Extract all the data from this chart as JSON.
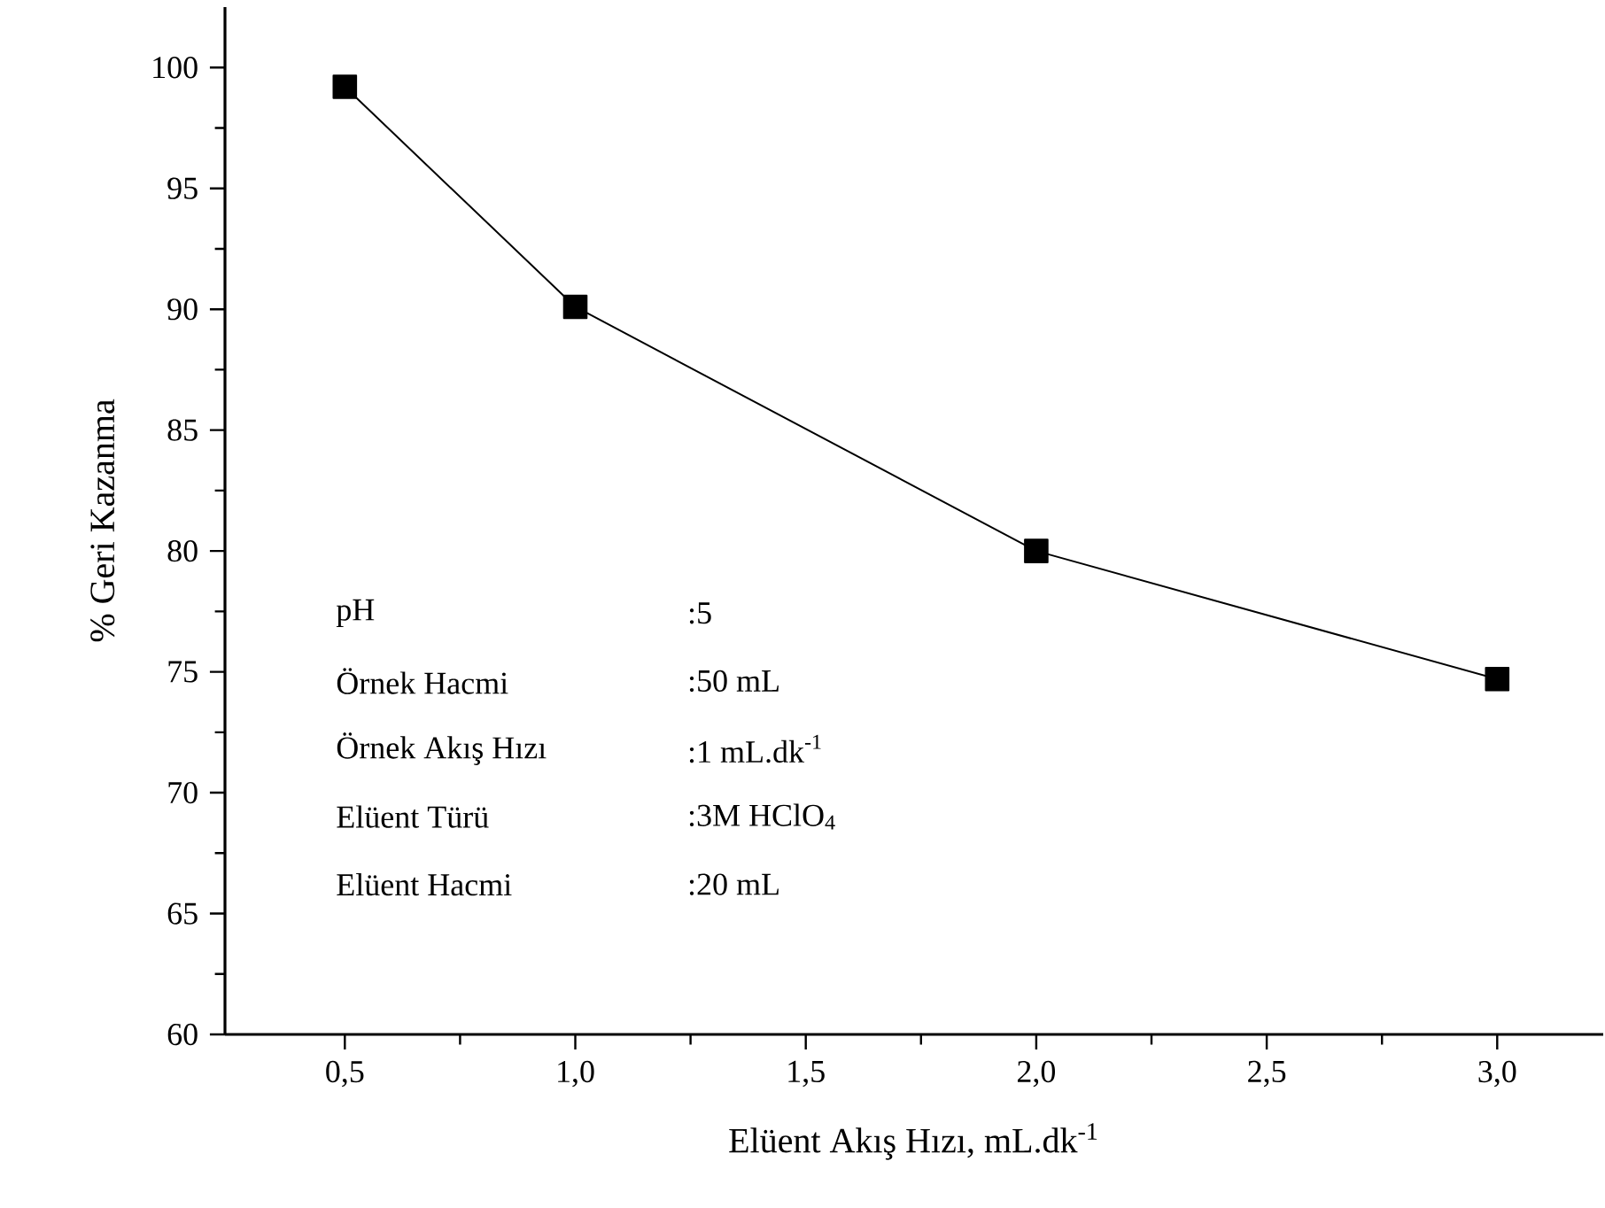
{
  "chart_data": {
    "type": "line",
    "xlabel": "Elüent Akış Hızı, mL.dk$^{-1}$",
    "ylabel": "% Geri Kazanma",
    "x": [
      0.5,
      1.0,
      2.0,
      3.0
    ],
    "series": [
      {
        "color": "#000000",
        "values": [
          99.2,
          90.1,
          80.0,
          74.7
        ]
      }
    ],
    "xlim": [
      0.24,
      3.23
    ],
    "ylim": [
      60,
      102.5
    ],
    "xticks": [
      {
        "value": 0.5,
        "label": "0,5"
      },
      {
        "value": 1.0,
        "label": "1,0"
      },
      {
        "value": 1.5,
        "label": "1,5"
      },
      {
        "value": 2.0,
        "label": "2,0"
      },
      {
        "value": 2.5,
        "label": "2,5"
      },
      {
        "value": 3.0,
        "label": "3,0"
      }
    ],
    "yticks": [
      60,
      65,
      70,
      75,
      80,
      85,
      90,
      95,
      100
    ],
    "marker": "square",
    "line_style": "solid",
    "annotations": [
      "pH",
      ":5",
      "Örnek Hacmi",
      ":50 mL",
      "Örnek Akış Hızı",
      ":1 mL.dk$^{-1}$",
      "Elüent Türü",
      ":3M HClO$_{4}$",
      "Elüent Hacmi",
      ":20 mL"
    ]
  }
}
